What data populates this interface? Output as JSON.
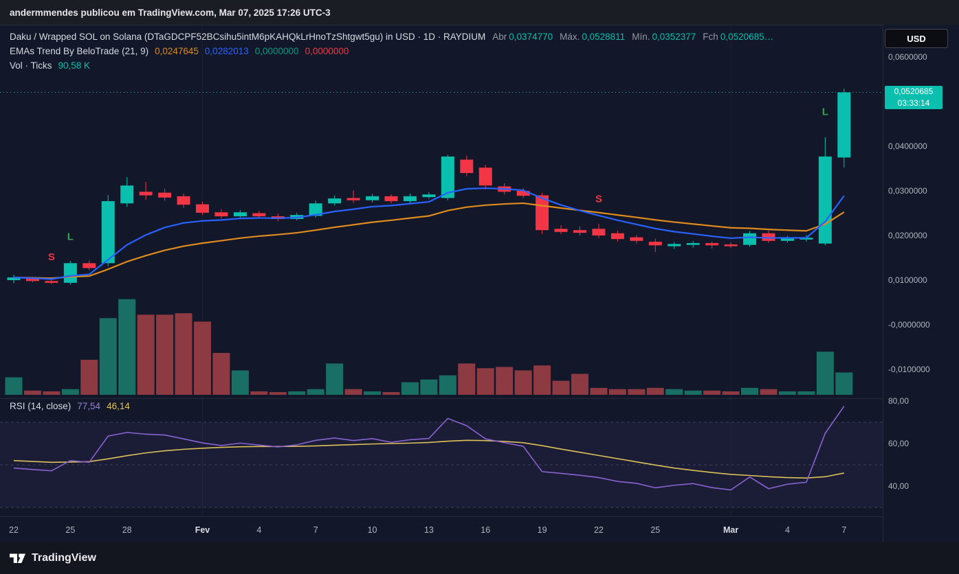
{
  "share_bar": {
    "text": "andermmendes publicou em TradingView.com, Mar 07, 2025 17:26 UTC-3"
  },
  "toolbar": {
    "currency_label": "USD"
  },
  "legend": {
    "title": "Daku / Wrapped SOL on Solana (DTaGDCPF52BCsihu5intM6pKAHQkLrHnoTzShtgwt5gu) in USD · 1D · RAYDIUM",
    "ohlc": [
      {
        "label": "Abr",
        "value": "0,0374770"
      },
      {
        "label": "Máx.",
        "value": "0,0528811"
      },
      {
        "label": "Mín.",
        "value": "0,0352377"
      },
      {
        "label": "Fch",
        "value": "0,0520685…"
      }
    ],
    "indicator": {
      "name": "EMAs Trend By BeloTrade (21, 9)",
      "values": [
        {
          "text": "0,0247645",
          "color": "#e08b1e"
        },
        {
          "text": "0,0282013",
          "color": "#2962ff"
        },
        {
          "text": "0,0000000",
          "color": "#089981"
        },
        {
          "text": "0,0000000",
          "color": "#f23645"
        }
      ]
    },
    "volume": {
      "name": "Vol · Ticks",
      "value": "90,58 K"
    },
    "rsi": {
      "name": "RSI (14, close)",
      "values": [
        {
          "text": "77,54",
          "color": "#9c7fd4"
        },
        {
          "text": "46,14",
          "color": "#e2c55b"
        }
      ]
    }
  },
  "price_badge": {
    "price": "0,0520685",
    "countdown": "03:33:14"
  },
  "footer": {
    "brand": "TradingView"
  },
  "chart_data": {
    "type": "candlestick",
    "title": "Daku / Wrapped SOL on Solana in USD, 1D, RAYDIUM",
    "interval": "1D",
    "last_price": 0.0520685,
    "countdown": "03:33:14",
    "price_ticks": [
      {
        "label": "0,0600000",
        "value": 0.06
      },
      {
        "label": "0,0400000",
        "value": 0.04
      },
      {
        "label": "0,0300000",
        "value": 0.03
      },
      {
        "label": "0,0200000",
        "value": 0.02
      },
      {
        "label": "0,0100000",
        "value": 0.01
      },
      {
        "label": "-0,0000000",
        "value": 0.0
      },
      {
        "label": "-0,0100000",
        "value": -0.01
      }
    ],
    "rsi_ticks": [
      {
        "label": "80,00",
        "value": 80
      },
      {
        "label": "60,00",
        "value": 60
      },
      {
        "label": "40,00",
        "value": 40
      }
    ],
    "x_ticks": [
      {
        "i": 0,
        "label": "22"
      },
      {
        "i": 3,
        "label": "25"
      },
      {
        "i": 6,
        "label": "28"
      },
      {
        "i": 10,
        "label": "Fev",
        "month": true
      },
      {
        "i": 13,
        "label": "4"
      },
      {
        "i": 16,
        "label": "7"
      },
      {
        "i": 19,
        "label": "10"
      },
      {
        "i": 22,
        "label": "13"
      },
      {
        "i": 25,
        "label": "16"
      },
      {
        "i": 28,
        "label": "19"
      },
      {
        "i": 31,
        "label": "22"
      },
      {
        "i": 34,
        "label": "25"
      },
      {
        "i": 38,
        "label": "Mar",
        "month": true
      },
      {
        "i": 41,
        "label": "4"
      },
      {
        "i": 44,
        "label": "7"
      }
    ],
    "candles": {
      "ohlc": [
        [
          0.01,
          0.0112,
          0.0093,
          0.0106
        ],
        [
          0.0105,
          0.0108,
          0.0095,
          0.0098
        ],
        [
          0.0098,
          0.0103,
          0.0091,
          0.0094
        ],
        [
          0.0094,
          0.0143,
          0.009,
          0.0138
        ],
        [
          0.0138,
          0.0144,
          0.0122,
          0.0127
        ],
        [
          0.0138,
          0.0291,
          0.0131,
          0.0277
        ],
        [
          0.0272,
          0.0331,
          0.0264,
          0.0312
        ],
        [
          0.0298,
          0.032,
          0.028,
          0.029
        ],
        [
          0.0296,
          0.0305,
          0.0278,
          0.0285
        ],
        [
          0.0288,
          0.0294,
          0.0262,
          0.0269
        ],
        [
          0.027,
          0.0276,
          0.0246,
          0.0251
        ],
        [
          0.0252,
          0.0259,
          0.0238,
          0.0243
        ],
        [
          0.0243,
          0.0257,
          0.0237,
          0.0252
        ],
        [
          0.025,
          0.0255,
          0.0238,
          0.0243
        ],
        [
          0.0243,
          0.0249,
          0.0232,
          0.0237
        ],
        [
          0.0237,
          0.0251,
          0.0234,
          0.0246
        ],
        [
          0.0244,
          0.0278,
          0.024,
          0.0272
        ],
        [
          0.0272,
          0.029,
          0.0267,
          0.0283
        ],
        [
          0.0284,
          0.0301,
          0.0273,
          0.0279
        ],
        [
          0.0279,
          0.0293,
          0.0274,
          0.0288
        ],
        [
          0.0288,
          0.0292,
          0.0272,
          0.0277
        ],
        [
          0.0277,
          0.0294,
          0.0273,
          0.0288
        ],
        [
          0.0286,
          0.0297,
          0.0282,
          0.0292
        ],
        [
          0.0284,
          0.0381,
          0.0279,
          0.0377
        ],
        [
          0.037,
          0.0379,
          0.0333,
          0.034
        ],
        [
          0.0352,
          0.0358,
          0.0303,
          0.0312
        ],
        [
          0.031,
          0.0317,
          0.0292,
          0.0298
        ],
        [
          0.03,
          0.0306,
          0.0284,
          0.0289
        ],
        [
          0.029,
          0.0296,
          0.0203,
          0.0212
        ],
        [
          0.0215,
          0.0223,
          0.0203,
          0.0208
        ],
        [
          0.0212,
          0.022,
          0.02,
          0.0206
        ],
        [
          0.0215,
          0.0226,
          0.0194,
          0.02
        ],
        [
          0.0205,
          0.0211,
          0.0186,
          0.0192
        ],
        [
          0.0196,
          0.0201,
          0.0182,
          0.0188
        ],
        [
          0.0186,
          0.0193,
          0.0163,
          0.0178
        ],
        [
          0.0176,
          0.0185,
          0.017,
          0.0181
        ],
        [
          0.0179,
          0.0187,
          0.0173,
          0.0183
        ],
        [
          0.0183,
          0.0187,
          0.0171,
          0.0178
        ],
        [
          0.018,
          0.0185,
          0.0172,
          0.0176
        ],
        [
          0.0179,
          0.021,
          0.0175,
          0.0205
        ],
        [
          0.0205,
          0.0211,
          0.0183,
          0.0188
        ],
        [
          0.0188,
          0.0199,
          0.0184,
          0.0195
        ],
        [
          0.0191,
          0.0201,
          0.0186,
          0.0195
        ],
        [
          0.0182,
          0.042,
          0.0178,
          0.0377
        ],
        [
          0.037477,
          0.0528811,
          0.0352377,
          0.0520685
        ]
      ],
      "volume_k": [
        71,
        17,
        14,
        23,
        142,
        311,
        388,
        325,
        325,
        331,
        297,
        170,
        99,
        14,
        11,
        14,
        23,
        127,
        23,
        14,
        11,
        51,
        62,
        79,
        127,
        108,
        113,
        99,
        119,
        57,
        85,
        28,
        23,
        23,
        28,
        23,
        17,
        17,
        14,
        28,
        23,
        14,
        14,
        175,
        90.58
      ]
    },
    "volume_scale_max_k": 390,
    "indicators": {
      "ema_periods": [
        21,
        9
      ],
      "rsi": [
        48.5,
        47.8,
        47.2,
        52.0,
        51.2,
        63.5,
        65.2,
        64.4,
        64.0,
        62.2,
        60.3,
        59.1,
        60.2,
        59.3,
        58.4,
        59.4,
        61.5,
        62.6,
        61.4,
        62.3,
        60.6,
        61.8,
        62.4,
        71.8,
        68.4,
        62.2,
        60.4,
        58.7,
        46.8,
        46.0,
        45.1,
        44.0,
        42.2,
        41.3,
        39.2,
        40.4,
        41.2,
        39.3,
        38.2,
        44.3,
        38.8,
        40.9,
        41.8,
        64.8,
        77.54
      ],
      "rsi_ma": [
        52.0,
        51.6,
        51.2,
        51.3,
        51.5,
        52.8,
        54.3,
        55.6,
        56.6,
        57.3,
        57.8,
        58.2,
        58.5,
        58.6,
        58.6,
        58.7,
        58.9,
        59.2,
        59.5,
        59.8,
        60.0,
        60.2,
        60.5,
        61.1,
        61.5,
        61.4,
        61.0,
        60.4,
        59.0,
        57.4,
        55.9,
        54.4,
        52.9,
        51.4,
        49.9,
        48.5,
        47.4,
        46.4,
        45.5,
        45.0,
        44.4,
        44.0,
        43.8,
        44.4,
        46.14
      ]
    },
    "rsi_guides": [
      70,
      50,
      30
    ],
    "markers": [
      {
        "day": 2,
        "price": 0.0145,
        "text": "S"
      },
      {
        "day": 3,
        "price": 0.019,
        "text": "L"
      },
      {
        "day": 31,
        "price": 0.0275,
        "text": "S"
      },
      {
        "day": 43,
        "price": 0.047,
        "text": "L"
      }
    ],
    "colors": {
      "up": "#0abfad",
      "down": "#f23645",
      "vol_up": "#1a6f64",
      "vol_down": "#8d3a42",
      "ema_fast": "#2962ff",
      "ema_slow": "#e08b1e",
      "rsi": "#8a63d2",
      "rsi_ma": "#ddc25a",
      "marker_long": "#36a24c",
      "marker_short": "#f23645"
    }
  }
}
